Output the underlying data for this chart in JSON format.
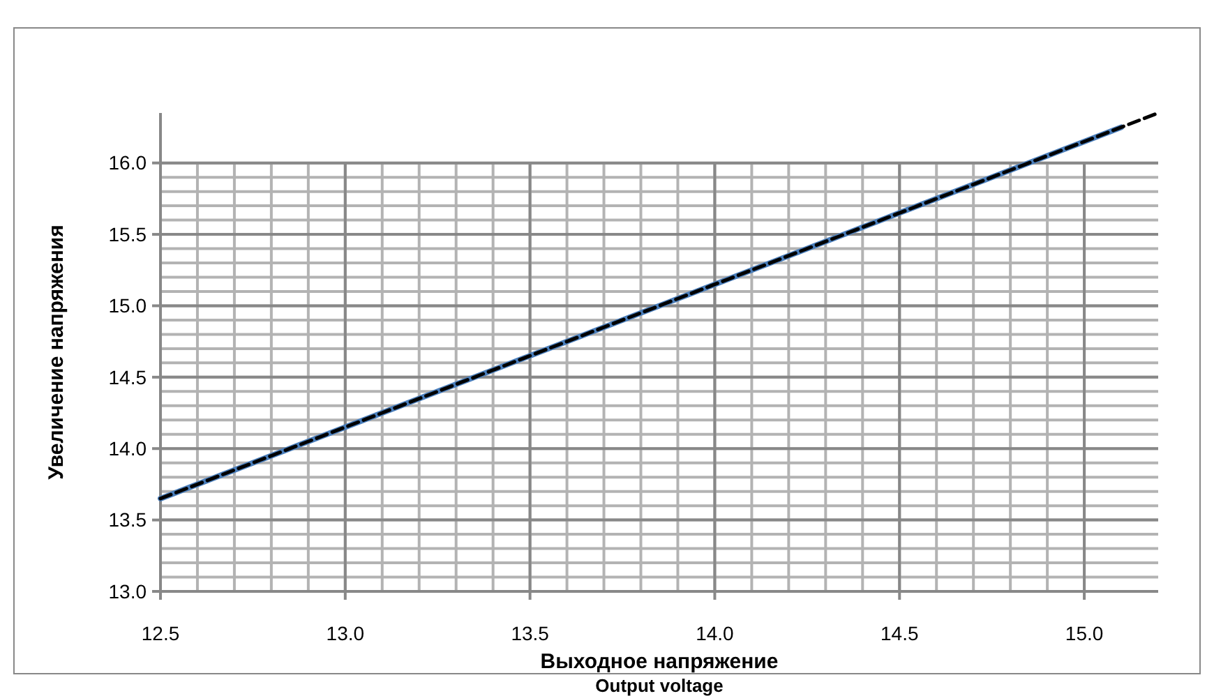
{
  "chart_data": {
    "type": "line",
    "xlabel": "Выходное напряжение",
    "ylabel": "Увеличение напряжения",
    "annotations": [
      "Output voltage"
    ],
    "series": [
      {
        "color": "#4a7ebb",
        "x": [
          12.5,
          13.0,
          13.5,
          14.0,
          14.5,
          15.0,
          15.1
        ],
        "values": [
          13.65,
          14.15,
          14.65,
          15.15,
          15.65,
          16.15,
          16.25
        ]
      },
      {
        "type": "line",
        "color": "#000000",
        "line_style": "dashed",
        "x": [
          12.5,
          15.2
        ],
        "values": [
          13.65,
          16.35
        ]
      }
    ],
    "xlim": [
      12.5,
      15.2
    ],
    "xticks": [
      {
        "value": 12.5,
        "label": "12.5"
      },
      {
        "value": 13,
        "label": "13.0"
      },
      {
        "value": 13.5,
        "label": "13.5"
      },
      {
        "value": 14,
        "label": "14.0"
      },
      {
        "value": 14.5,
        "label": "14.5"
      },
      {
        "value": 15,
        "label": "15.0"
      }
    ],
    "ylim": [
      13,
      16.35
    ],
    "yticks": [
      {
        "value": 13,
        "label": "13.0"
      },
      {
        "value": 13.5,
        "label": "13.5"
      },
      {
        "value": 14,
        "label": "14.0"
      },
      {
        "value": 14.5,
        "label": "14.5"
      },
      {
        "value": 15,
        "label": "15.0"
      },
      {
        "value": 15.5,
        "label": "15.5"
      },
      {
        "value": 16,
        "label": "16.0"
      }
    ],
    "grid": true
  }
}
